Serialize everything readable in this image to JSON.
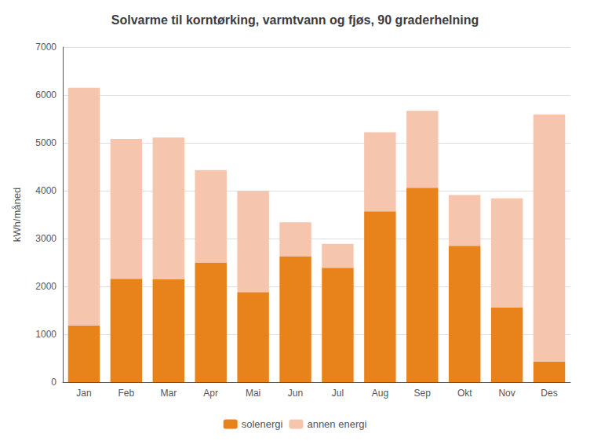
{
  "chart_data": {
    "type": "bar",
    "title": "Solvarme til korntørking, varmtvann og fjøs, 90 graderhelning",
    "ylabel": "kWh/måned",
    "categories": [
      "Jan",
      "Feb",
      "Mar",
      "Apr",
      "Mai",
      "Jun",
      "Jul",
      "Aug",
      "Sep",
      "Okt",
      "Nov",
      "Des"
    ],
    "series": [
      {
        "name": "solenergi",
        "color": "#E8821A",
        "values": [
          1180,
          2160,
          2150,
          2500,
          1880,
          2630,
          2390,
          3570,
          4060,
          2850,
          1560,
          430
        ]
      },
      {
        "name": "annen energi",
        "color": "#F5C5AD",
        "values": [
          4970,
          2920,
          2960,
          1930,
          2120,
          710,
          500,
          1650,
          1610,
          1060,
          2280,
          5160
        ]
      }
    ],
    "ylim": [
      0,
      7000
    ],
    "yticks": [
      0,
      1000,
      2000,
      3000,
      4000,
      5000,
      6000,
      7000
    ],
    "stacked": true,
    "grid": true,
    "legend": "bottom"
  }
}
